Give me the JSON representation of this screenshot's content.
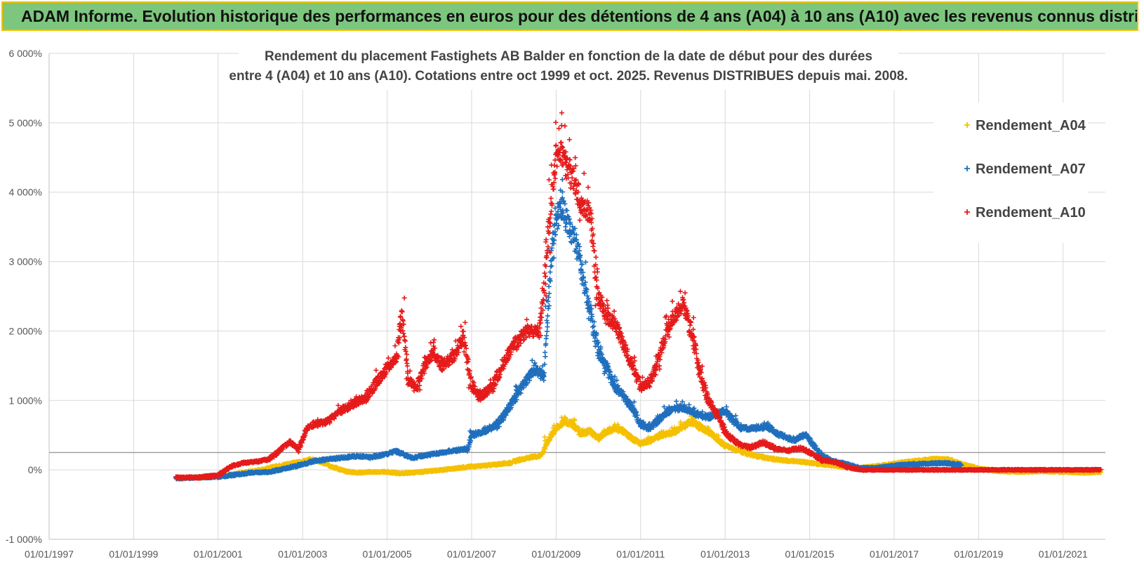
{
  "banner": {
    "title": "ADAM Informe. Evolution historique des performances en euros pour des détentions de 4 ans (A04) à 10 ans (A10) avec les revenus connus distribués"
  },
  "chart_data": {
    "type": "scatter",
    "title_lines": [
      "Rendement du placement Fastighets AB Balder en fonction de la date de début pour des durées",
      "entre 4 (A04) et 10 ans (A10). Cotations entre oct 1999 et oct. 2025. Revenus DISTRIBUES depuis mai. 2008."
    ],
    "xlabel": "",
    "ylabel": "",
    "x_tick_labels": [
      "01/01/1997",
      "01/01/1999",
      "01/01/2001",
      "01/01/2003",
      "01/01/2005",
      "01/01/2007",
      "01/01/2009",
      "01/01/2011",
      "01/01/2013",
      "01/01/2015",
      "01/01/2017",
      "01/01/2019",
      "01/01/2021"
    ],
    "xlim": [
      1997.0,
      2022.0
    ],
    "y_tick_labels": [
      "-1 000%",
      "0%",
      "1 000%",
      "2 000%",
      "3 000%",
      "4 000%",
      "5 000%",
      "6 000%"
    ],
    "ylim": [
      -1000,
      6000
    ],
    "grid": true,
    "reference_line_y": 250,
    "legend_position": "top-right",
    "marker": "+",
    "series": [
      {
        "name": "Rendement_A04",
        "color": "#f5c000",
        "points": [
          [
            2000.0,
            -120
          ],
          [
            2000.5,
            -110
          ],
          [
            2001.0,
            -95
          ],
          [
            2001.3,
            -70
          ],
          [
            2001.6,
            -40
          ],
          [
            2002.0,
            0
          ],
          [
            2002.3,
            40
          ],
          [
            2002.6,
            80
          ],
          [
            2003.0,
            120
          ],
          [
            2003.2,
            150
          ],
          [
            2003.4,
            120
          ],
          [
            2003.7,
            50
          ],
          [
            2004.0,
            -20
          ],
          [
            2004.3,
            -40
          ],
          [
            2004.6,
            -30
          ],
          [
            2005.0,
            -30
          ],
          [
            2005.3,
            -50
          ],
          [
            2005.6,
            -40
          ],
          [
            2006.0,
            -20
          ],
          [
            2006.3,
            0
          ],
          [
            2006.6,
            20
          ],
          [
            2007.0,
            50
          ],
          [
            2007.3,
            60
          ],
          [
            2007.6,
            80
          ],
          [
            2007.9,
            100
          ],
          [
            2008.1,
            140
          ],
          [
            2008.4,
            180
          ],
          [
            2008.6,
            200
          ],
          [
            2008.7,
            260
          ],
          [
            2008.8,
            420
          ],
          [
            2009.0,
            600
          ],
          [
            2009.2,
            700
          ],
          [
            2009.4,
            650
          ],
          [
            2009.6,
            520
          ],
          [
            2009.8,
            560
          ],
          [
            2010.0,
            450
          ],
          [
            2010.2,
            550
          ],
          [
            2010.4,
            600
          ],
          [
            2010.6,
            550
          ],
          [
            2010.8,
            450
          ],
          [
            2011.0,
            380
          ],
          [
            2011.2,
            420
          ],
          [
            2011.5,
            500
          ],
          [
            2011.8,
            550
          ],
          [
            2012.0,
            620
          ],
          [
            2012.2,
            700
          ],
          [
            2012.4,
            620
          ],
          [
            2012.6,
            550
          ],
          [
            2012.8,
            450
          ],
          [
            2013.0,
            350
          ],
          [
            2013.3,
            280
          ],
          [
            2013.6,
            220
          ],
          [
            2013.9,
            180
          ],
          [
            2014.2,
            150
          ],
          [
            2014.5,
            130
          ],
          [
            2014.8,
            120
          ],
          [
            2015.0,
            100
          ],
          [
            2015.3,
            80
          ],
          [
            2015.6,
            60
          ],
          [
            2015.9,
            40
          ],
          [
            2016.2,
            30
          ],
          [
            2016.5,
            50
          ],
          [
            2016.8,
            70
          ],
          [
            2017.1,
            100
          ],
          [
            2017.4,
            120
          ],
          [
            2017.7,
            140
          ],
          [
            2018.0,
            160
          ],
          [
            2018.3,
            150
          ],
          [
            2018.6,
            80
          ],
          [
            2019.0,
            20
          ],
          [
            2019.5,
            -20
          ],
          [
            2020.0,
            -30
          ],
          [
            2020.5,
            -20
          ],
          [
            2021.0,
            -30
          ],
          [
            2021.5,
            -40
          ],
          [
            2021.9,
            -30
          ]
        ]
      },
      {
        "name": "Rendement_A07",
        "color": "#1f6fbd",
        "points": [
          [
            2000.0,
            -120
          ],
          [
            2000.5,
            -110
          ],
          [
            2001.0,
            -100
          ],
          [
            2001.4,
            -70
          ],
          [
            2001.8,
            -40
          ],
          [
            2002.2,
            -30
          ],
          [
            2002.6,
            20
          ],
          [
            2003.0,
            80
          ],
          [
            2003.3,
            130
          ],
          [
            2003.6,
            150
          ],
          [
            2004.0,
            180
          ],
          [
            2004.3,
            200
          ],
          [
            2004.6,
            180
          ],
          [
            2005.0,
            230
          ],
          [
            2005.2,
            270
          ],
          [
            2005.4,
            220
          ],
          [
            2005.6,
            170
          ],
          [
            2005.8,
            200
          ],
          [
            2006.0,
            220
          ],
          [
            2006.3,
            250
          ],
          [
            2006.6,
            280
          ],
          [
            2006.9,
            300
          ],
          [
            2007.0,
            500
          ],
          [
            2007.3,
            560
          ],
          [
            2007.6,
            650
          ],
          [
            2007.9,
            900
          ],
          [
            2008.1,
            1100
          ],
          [
            2008.3,
            1300
          ],
          [
            2008.5,
            1450
          ],
          [
            2008.7,
            1350
          ],
          [
            2008.8,
            2200
          ],
          [
            2008.9,
            3200
          ],
          [
            2009.0,
            3600
          ],
          [
            2009.15,
            3800
          ],
          [
            2009.3,
            3500
          ],
          [
            2009.5,
            3200
          ],
          [
            2009.65,
            2700
          ],
          [
            2009.8,
            2300
          ],
          [
            2010.0,
            1700
          ],
          [
            2010.2,
            1450
          ],
          [
            2010.4,
            1200
          ],
          [
            2010.6,
            1050
          ],
          [
            2010.8,
            900
          ],
          [
            2011.0,
            650
          ],
          [
            2011.2,
            600
          ],
          [
            2011.4,
            700
          ],
          [
            2011.6,
            820
          ],
          [
            2011.8,
            880
          ],
          [
            2012.0,
            900
          ],
          [
            2012.2,
            850
          ],
          [
            2012.4,
            780
          ],
          [
            2012.6,
            760
          ],
          [
            2012.8,
            800
          ],
          [
            2013.0,
            850
          ],
          [
            2013.2,
            700
          ],
          [
            2013.4,
            600
          ],
          [
            2013.7,
            600
          ],
          [
            2014.0,
            620
          ],
          [
            2014.3,
            500
          ],
          [
            2014.6,
            430
          ],
          [
            2014.9,
            500
          ],
          [
            2015.1,
            350
          ],
          [
            2015.3,
            200
          ],
          [
            2015.6,
            120
          ],
          [
            2015.9,
            80
          ],
          [
            2016.2,
            30
          ],
          [
            2016.6,
            30
          ],
          [
            2017.0,
            60
          ],
          [
            2017.4,
            80
          ],
          [
            2017.8,
            90
          ],
          [
            2018.2,
            100
          ],
          [
            2018.6,
            70
          ]
        ]
      },
      {
        "name": "Rendement_A10",
        "color": "#e51b1b",
        "points": [
          [
            2000.0,
            -110
          ],
          [
            2000.5,
            -110
          ],
          [
            2001.0,
            -80
          ],
          [
            2001.3,
            50
          ],
          [
            2001.6,
            100
          ],
          [
            2001.9,
            120
          ],
          [
            2002.2,
            150
          ],
          [
            2002.5,
            300
          ],
          [
            2002.7,
            400
          ],
          [
            2002.9,
            300
          ],
          [
            2003.1,
            600
          ],
          [
            2003.3,
            650
          ],
          [
            2003.6,
            700
          ],
          [
            2003.9,
            850
          ],
          [
            2004.2,
            950
          ],
          [
            2004.5,
            1050
          ],
          [
            2004.8,
            1300
          ],
          [
            2005.0,
            1450
          ],
          [
            2005.2,
            1600
          ],
          [
            2005.35,
            2200
          ],
          [
            2005.5,
            1300
          ],
          [
            2005.7,
            1200
          ],
          [
            2005.9,
            1500
          ],
          [
            2006.1,
            1700
          ],
          [
            2006.3,
            1500
          ],
          [
            2006.6,
            1650
          ],
          [
            2006.8,
            1900
          ],
          [
            2007.0,
            1200
          ],
          [
            2007.2,
            1050
          ],
          [
            2007.5,
            1200
          ],
          [
            2007.8,
            1600
          ],
          [
            2008.0,
            1800
          ],
          [
            2008.3,
            2000
          ],
          [
            2008.6,
            2000
          ],
          [
            2008.7,
            2500
          ],
          [
            2008.8,
            3300
          ],
          [
            2008.9,
            4000
          ],
          [
            2009.0,
            4500
          ],
          [
            2009.1,
            4600
          ],
          [
            2009.25,
            4400
          ],
          [
            2009.4,
            4200
          ],
          [
            2009.6,
            3800
          ],
          [
            2009.8,
            3700
          ],
          [
            2010.0,
            2500
          ],
          [
            2010.2,
            2200
          ],
          [
            2010.4,
            2100
          ],
          [
            2010.6,
            1800
          ],
          [
            2010.8,
            1500
          ],
          [
            2011.0,
            1200
          ],
          [
            2011.2,
            1250
          ],
          [
            2011.4,
            1500
          ],
          [
            2011.6,
            2000
          ],
          [
            2011.8,
            2200
          ],
          [
            2012.0,
            2400
          ],
          [
            2012.2,
            2000
          ],
          [
            2012.4,
            1400
          ],
          [
            2012.6,
            1000
          ],
          [
            2012.8,
            800
          ],
          [
            2013.0,
            550
          ],
          [
            2013.2,
            420
          ],
          [
            2013.4,
            350
          ],
          [
            2013.6,
            320
          ],
          [
            2013.9,
            400
          ],
          [
            2014.2,
            300
          ],
          [
            2014.5,
            280
          ],
          [
            2014.8,
            310
          ],
          [
            2015.0,
            250
          ],
          [
            2015.3,
            140
          ],
          [
            2015.6,
            110
          ],
          [
            2015.9,
            40
          ],
          [
            2016.2,
            0
          ],
          [
            2016.8,
            0
          ],
          [
            2017.5,
            0
          ],
          [
            2018.5,
            0
          ],
          [
            2019.5,
            0
          ],
          [
            2020.5,
            0
          ],
          [
            2021.5,
            0
          ],
          [
            2021.9,
            0
          ]
        ]
      }
    ]
  }
}
